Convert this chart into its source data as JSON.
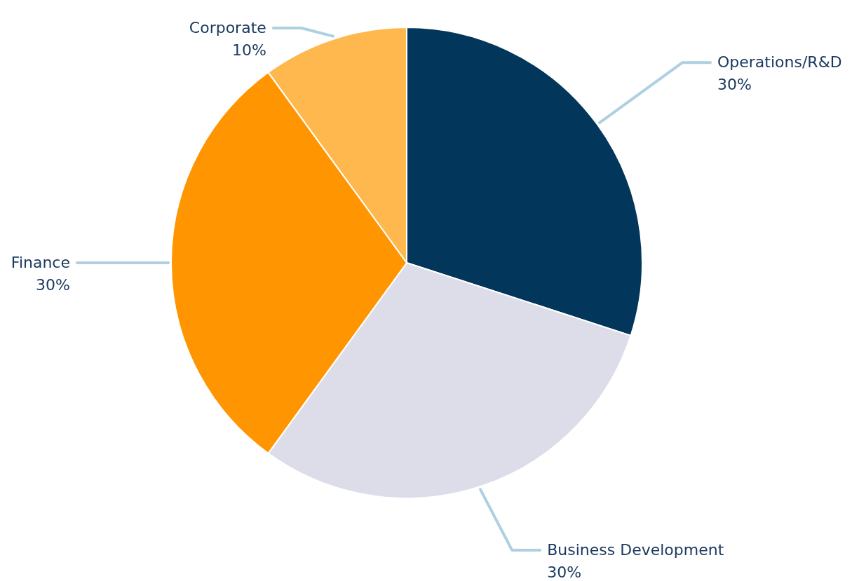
{
  "chart_data": {
    "type": "pie",
    "categories": [
      "Operations/R&D",
      "Business Development",
      "Finance",
      "Corporate"
    ],
    "values": [
      30,
      30,
      30,
      10
    ],
    "colors": [
      "#02365a",
      "#dddde9",
      "#ff9500",
      "#ffb84d"
    ],
    "value_labels": [
      "30%",
      "30%",
      "30%",
      "10%"
    ]
  }
}
